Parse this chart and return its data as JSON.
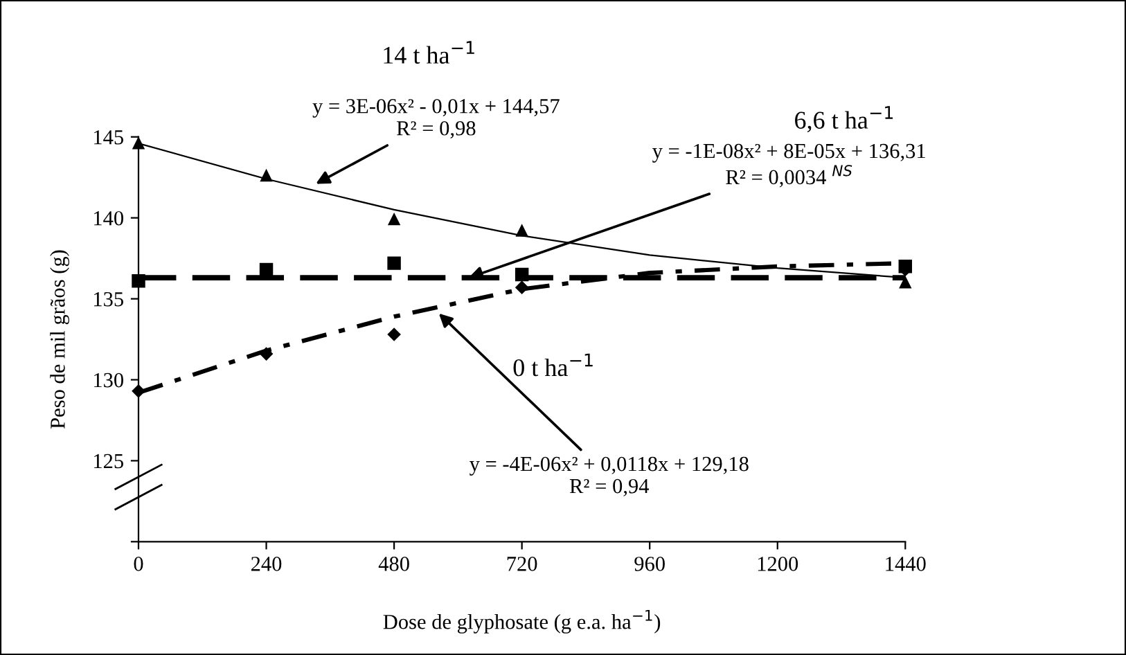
{
  "chart_data": {
    "type": "scatter",
    "xlabel": "Dose de glyphosate (g e.a. ha$^{−1}$)",
    "ylabel": "Peso de mil grãos (g)",
    "xlim": [
      0,
      1440
    ],
    "xticks": [
      0,
      240,
      480,
      720,
      960,
      1200,
      1440
    ],
    "ylim": [
      120,
      145
    ],
    "yticks": [
      {
        "value": 120,
        "label": null
      },
      125,
      130,
      135,
      140,
      145
    ],
    "grid": false,
    "legend": false,
    "series": [
      {
        "marker": "triangle",
        "color": "#000000",
        "x": [
          0,
          240,
          480,
          720,
          1440
        ],
        "values": [
          144.6,
          142.6,
          139.9,
          139.2,
          136.0
        ]
      },
      {
        "marker": "square",
        "color": "#000000",
        "x": [
          0,
          240,
          480,
          720,
          1440
        ],
        "values": [
          136.1,
          136.8,
          137.2,
          136.5,
          137.0
        ]
      },
      {
        "marker": "diamond",
        "color": "#000000",
        "x": [
          0,
          240,
          480,
          720,
          1440
        ],
        "values": [
          129.3,
          131.6,
          132.8,
          135.7,
          136.8
        ]
      },
      {
        "type": "line",
        "line_style": "solid",
        "color": "#000000",
        "x": [
          0,
          240,
          480,
          720,
          960,
          1200,
          1440
        ],
        "values": [
          144.6,
          142.4,
          140.5,
          138.9,
          137.7,
          136.9,
          136.3
        ]
      },
      {
        "type": "line",
        "line_style": "dashed",
        "color": "#000000",
        "x": [
          0,
          240,
          480,
          720,
          960,
          1200,
          1440
        ],
        "values": [
          136.3,
          136.3,
          136.3,
          136.3,
          136.3,
          136.3,
          136.3
        ]
      },
      {
        "type": "line",
        "line_style": "dashdot",
        "color": "#000000",
        "x": [
          0,
          240,
          480,
          720,
          960,
          1200,
          1440
        ],
        "values": [
          129.2,
          131.8,
          133.9,
          135.6,
          136.6,
          137.0,
          137.2
        ]
      }
    ],
    "annotations": [
      "14 t ha$^{−1}$",
      {
        "text": "y = 3E-06x² - 0,01x + 144,57\nR² = 0,98",
        "x": 333,
        "y": 142.1
      },
      "6,6 t ha$^{−1}$",
      {
        "text": "y = -1E-08x² + 8E-05x + 136,31\nR² = 0,0034 $^{NS}$",
        "x": 620,
        "y": 136.3
      },
      "0 t ha$^{−1}$",
      {
        "text": "y = -4E-06x² + 0,0118x + 129,18\nR² = 0,94",
        "x": 564,
        "y": 134.1
      }
    ]
  }
}
